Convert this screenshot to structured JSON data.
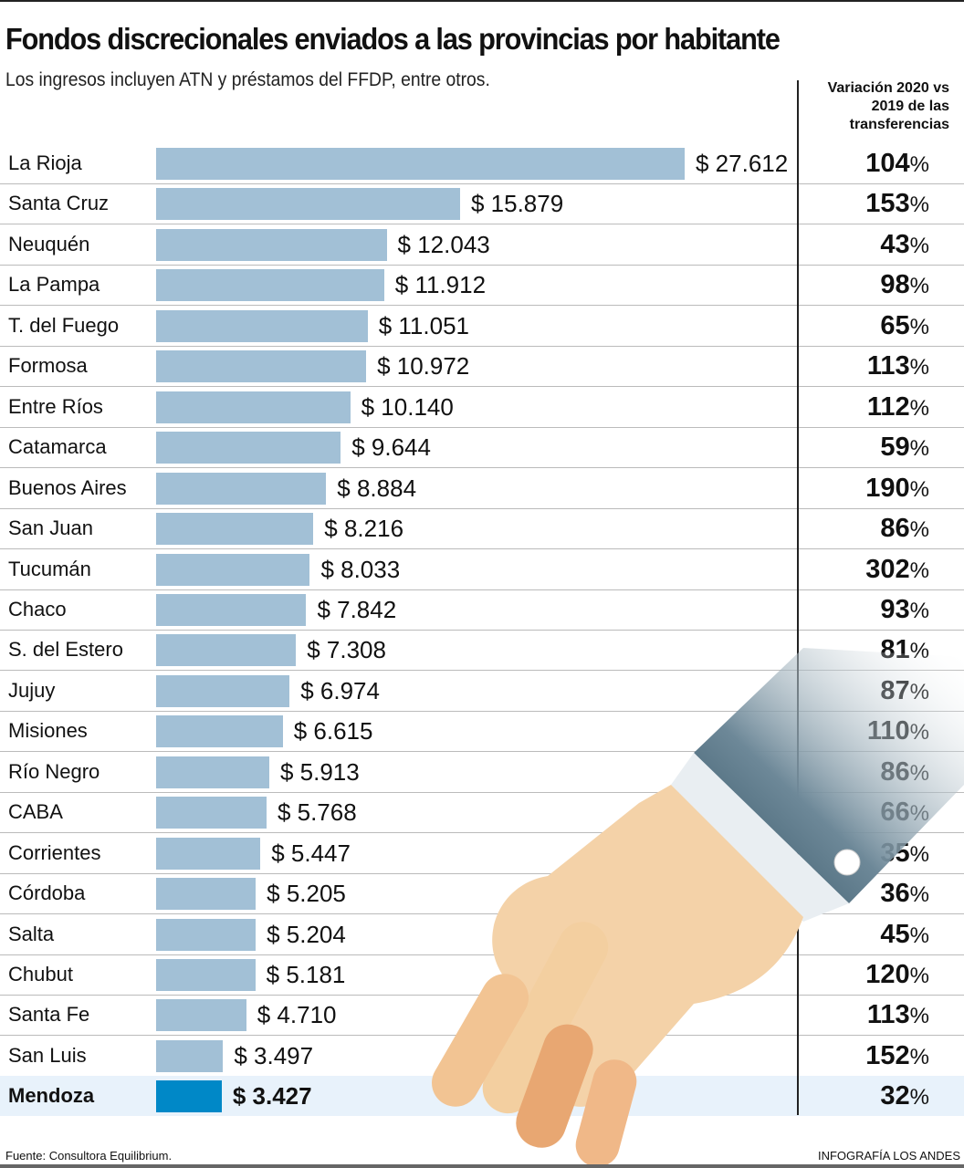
{
  "title": "Fondos discrecionales enviados a las provincias por habitante",
  "subtitle": "Los ingresos incluyen ATN y préstamos del FFDP, entre otros.",
  "variation_header": "Variación 2020 vs 2019 de las transferencias",
  "footer": {
    "source": "Fuente: Consultora Equilibrium.",
    "credit": "INFOGRAFÍA LOS ANDES"
  },
  "colors": {
    "bar": "#a2c0d6",
    "highlight_bar": "#0088c7",
    "highlight_row": "#e8f2fb"
  },
  "chart_data": {
    "type": "bar",
    "orientation": "horizontal",
    "title": "Fondos discrecionales enviados a las provincias por habitante",
    "highlight": "Mendoza",
    "categories": [
      "La Rioja",
      "Santa Cruz",
      "Neuquén",
      "La Pampa",
      "T. del Fuego",
      "Formosa",
      "Entre Ríos",
      "Catamarca",
      "Buenos Aires",
      "San Juan",
      "Tucumán",
      "Chaco",
      "S. del Estero",
      "Jujuy",
      "Misiones",
      "Río Negro",
      "CABA",
      "Corrientes",
      "Córdoba",
      "Salta",
      "Chubut",
      "Santa Fe",
      "San Luis",
      "Mendoza"
    ],
    "values": [
      27612,
      15879,
      12043,
      11912,
      11051,
      10972,
      10140,
      9644,
      8884,
      8216,
      8033,
      7842,
      7308,
      6974,
      6615,
      5913,
      5768,
      5447,
      5205,
      5204,
      5181,
      4710,
      3497,
      3427
    ],
    "value_labels": [
      "$ 27.612",
      "$ 15.879",
      "$ 12.043",
      "$ 11.912",
      "$ 11.051",
      "$ 10.972",
      "$ 10.140",
      "$ 9.644",
      "$ 8.884",
      "$ 8.216",
      "$ 8.033",
      "$ 7.842",
      "$ 7.308",
      "$ 6.974",
      "$ 6.615",
      "$ 5.913",
      "$ 5.768",
      "$ 5.447",
      "$ 5.205",
      "$ 5.204",
      "$ 5.181",
      "$ 4.710",
      "$ 3.497",
      "$ 3.427"
    ],
    "variation_pct": [
      104,
      153,
      43,
      98,
      65,
      113,
      112,
      59,
      190,
      86,
      302,
      93,
      81,
      87,
      110,
      86,
      66,
      35,
      36,
      45,
      120,
      113,
      152,
      32
    ]
  }
}
